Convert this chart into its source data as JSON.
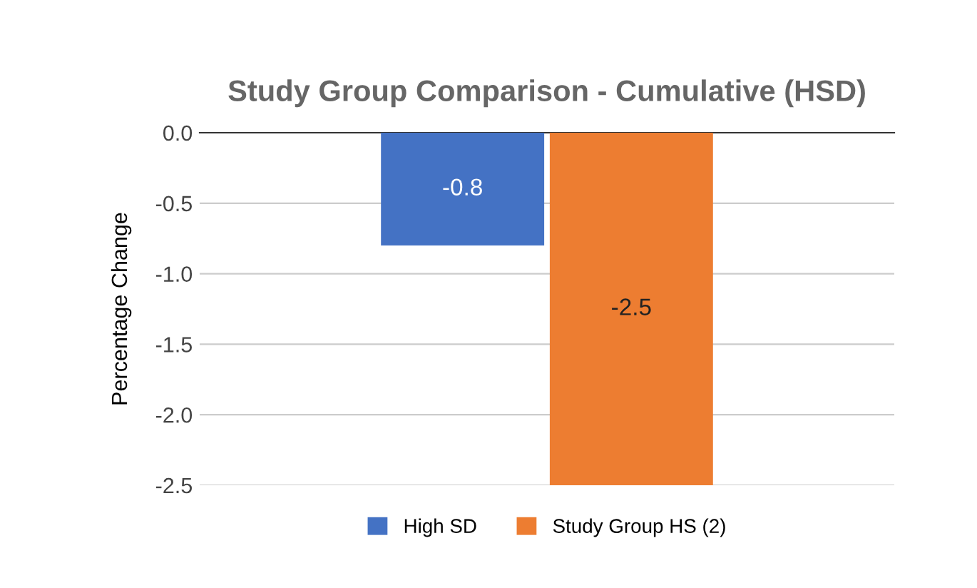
{
  "chart_data": {
    "type": "bar",
    "title": "Study Group Comparison - Cumulative (HSD)",
    "ylabel": "Percentage Change",
    "categories": [
      null
    ],
    "series": [
      {
        "name": "High SD",
        "color": "#4472c4",
        "values": [
          -0.8
        ]
      },
      {
        "name": "Study Group HS (2)",
        "color": "#ed7d31",
        "values": [
          -2.5
        ]
      }
    ],
    "ylim": [
      -2.5,
      0
    ],
    "yticks": [
      {
        "value": -2.5,
        "label": "-2.5"
      },
      {
        "value": -2,
        "label": "-2.0"
      },
      {
        "value": -1.5,
        "label": "-1.5"
      },
      {
        "value": -1,
        "label": "-1.0"
      },
      {
        "value": -0.5,
        "label": "-0.5"
      },
      {
        "value": 0,
        "label": "0.0"
      }
    ],
    "grid": "y",
    "legend": "bottom",
    "data_labels": true
  }
}
